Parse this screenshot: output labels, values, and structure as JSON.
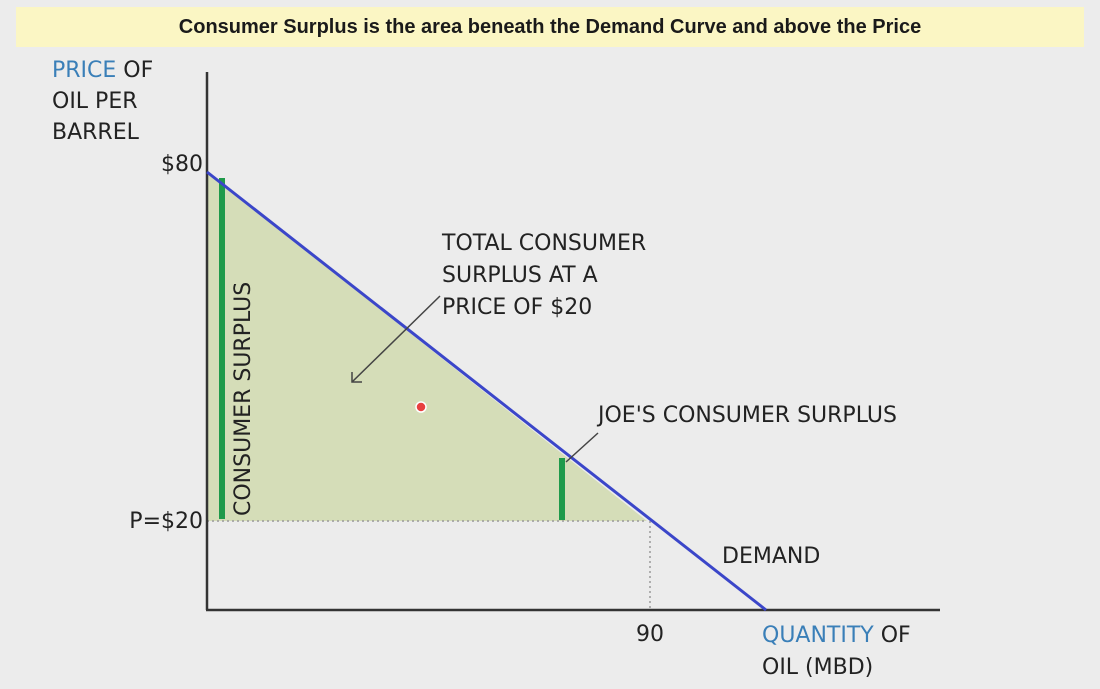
{
  "banner": {
    "text": "Consumer Surplus is the area beneath the Demand Curve and above the Price"
  },
  "axes": {
    "y_label": {
      "highlight": "PRICE",
      "line1_rest": " OF",
      "line2": "OIL PER",
      "line3": "BARREL"
    },
    "x_label": {
      "highlight": "QUANTITY",
      "line1_rest": " OF",
      "line2": "OIL (MBD)"
    },
    "y_ticks": [
      "$80",
      "P=$20"
    ],
    "x_ticks": [
      "90"
    ]
  },
  "annotations": {
    "total_surplus_line1": "TOTAL CONSUMER",
    "total_surplus_line2": "SURPLUS AT A",
    "total_surplus_line3": "PRICE OF $20",
    "joes_surplus": "JOE'S CONSUMER SURPLUS",
    "demand": "DEMAND",
    "vertical_bar": "CONSUMER SURPLUS"
  },
  "colors": {
    "demand_line": "#3b46c9",
    "surplus_fill": "#d3dcb3",
    "surplus_bar": "#1f9a4a",
    "highlight_text": "#3a7fb8",
    "pointer_dot": "#e84040"
  }
}
